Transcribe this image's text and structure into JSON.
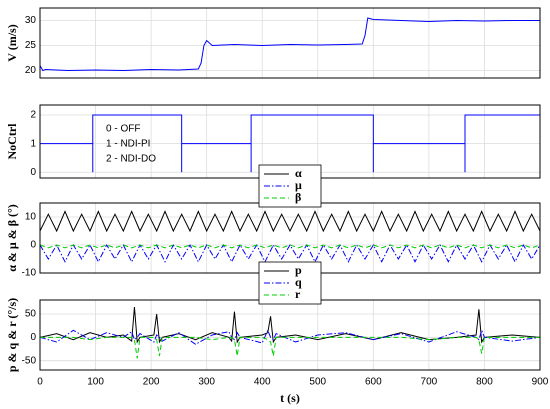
{
  "chart_data": [
    {
      "type": "line",
      "ylabel": "V (m/s)",
      "xlim": [
        0,
        900
      ],
      "xticks": [
        0,
        100,
        200,
        300,
        400,
        500,
        600,
        700,
        800,
        900
      ],
      "show_xtick_labels": false,
      "ylim": [
        18.5,
        32.5
      ],
      "yticks": [
        20,
        25,
        30
      ],
      "grid": true,
      "x": [
        0,
        5,
        10,
        50,
        100,
        150,
        200,
        250,
        285,
        290,
        295,
        300,
        310,
        350,
        400,
        450,
        500,
        550,
        580,
        585,
        590,
        600,
        650,
        700,
        750,
        800,
        850,
        900
      ],
      "series": [
        {
          "color": "#0000ff",
          "dash": "solid",
          "values": [
            21,
            20,
            20.2,
            20,
            20.1,
            20,
            20.2,
            20.1,
            20.3,
            21.5,
            25,
            26,
            25,
            25.2,
            25,
            25.2,
            25.1,
            25.2,
            25.3,
            27,
            30.5,
            30.2,
            30,
            29.8,
            30,
            29.9,
            30,
            30
          ]
        }
      ]
    },
    {
      "type": "line",
      "ylabel": "NoCtrl",
      "xlim": [
        0,
        900
      ],
      "xticks": [
        0,
        100,
        200,
        300,
        400,
        500,
        600,
        700,
        800,
        900
      ],
      "show_xtick_labels": false,
      "ylim": [
        -0.2,
        2.35
      ],
      "yticks": [
        0,
        1,
        2
      ],
      "grid": true,
      "annotations": [
        "0 - OFF",
        "1 - NDI-PI",
        "2 - NDI-DO"
      ],
      "x": [
        0,
        95,
        95,
        95,
        255,
        255,
        255,
        380,
        380,
        380,
        600,
        600,
        600,
        765,
        765,
        765,
        900
      ],
      "series": [
        {
          "color": "#0000ff",
          "dash": "solid",
          "values": [
            1,
            1,
            0,
            2,
            2,
            0,
            1,
            1,
            0,
            2,
            2,
            0,
            1,
            1,
            0,
            2,
            2
          ]
        }
      ]
    },
    {
      "type": "line",
      "ylabel": "α & μ & β (°)",
      "xlim": [
        0,
        900
      ],
      "xticks": [
        0,
        100,
        200,
        300,
        400,
        500,
        600,
        700,
        800,
        900
      ],
      "show_xtick_labels": false,
      "ylim": [
        -10,
        15
      ],
      "yticks": [
        -10,
        0,
        10
      ],
      "grid": true,
      "legend": "top",
      "x": [
        0,
        15,
        30,
        45,
        60,
        75,
        90,
        105,
        120,
        135,
        150,
        165,
        180,
        195,
        210,
        225,
        240,
        255,
        270,
        285,
        300,
        315,
        330,
        345,
        360,
        375,
        390,
        405,
        420,
        435,
        450,
        465,
        480,
        495,
        510,
        525,
        540,
        555,
        570,
        585,
        600,
        615,
        630,
        645,
        660,
        675,
        690,
        705,
        720,
        735,
        750,
        765,
        780,
        795,
        810,
        825,
        840,
        855,
        870,
        885,
        900
      ],
      "series": [
        {
          "name": "α",
          "color": "#000000",
          "dash": "solid",
          "values": [
            5,
            11,
            5,
            12,
            5,
            11,
            5,
            12,
            5,
            11,
            5,
            12,
            5,
            11,
            5,
            12,
            5,
            11,
            5,
            12,
            5,
            11,
            5,
            12,
            5,
            11,
            5,
            12,
            5,
            11,
            5,
            11,
            5,
            12,
            5,
            11,
            5,
            12,
            5,
            11,
            5,
            12,
            5,
            11,
            5,
            12,
            5,
            11,
            5,
            12,
            5,
            11,
            5,
            12,
            5,
            11,
            5,
            12,
            5,
            11,
            5
          ]
        },
        {
          "name": "μ",
          "color": "#0000ff",
          "dash": "dashdot",
          "values": [
            0,
            -5,
            0,
            -6,
            0,
            -5,
            0,
            -6,
            0,
            -5,
            0,
            -6,
            0,
            -5,
            0,
            -6,
            0,
            -5,
            0,
            -6,
            0,
            -5,
            0,
            -6,
            0,
            -5,
            0,
            -6,
            0,
            -5,
            0,
            -5,
            0,
            -6,
            0,
            -5,
            0,
            -6,
            0,
            -5,
            0,
            -6,
            0,
            -5,
            0,
            -6,
            0,
            -5,
            0,
            -6,
            0,
            -5,
            0,
            -6,
            0,
            -5,
            0,
            -6,
            0,
            -5,
            0
          ]
        },
        {
          "name": "β",
          "color": "#00cc00",
          "dash": "dashed",
          "values": [
            0,
            -1,
            0,
            -1,
            0,
            -1,
            0,
            -1,
            0,
            -1,
            0,
            -1,
            0,
            -1,
            0,
            -1,
            0,
            -1,
            0,
            -1,
            0,
            -1,
            0,
            -1,
            0,
            -1,
            0,
            -1,
            0,
            -1,
            0,
            -1,
            0,
            -1,
            0,
            -1,
            0,
            -1,
            0,
            -1,
            0,
            -1,
            0,
            -1,
            0,
            -1,
            0,
            -1,
            0,
            -1,
            0,
            -1,
            0,
            -1,
            0,
            -1,
            0,
            -1,
            0,
            -1,
            0
          ]
        }
      ]
    },
    {
      "type": "line",
      "ylabel": "p & q & r (°/s)",
      "xlabel": "t (s)",
      "xlim": [
        0,
        900
      ],
      "xticks": [
        0,
        100,
        200,
        300,
        400,
        500,
        600,
        700,
        800,
        900
      ],
      "show_xtick_labels": true,
      "ylim": [
        -70,
        80
      ],
      "yticks": [
        -50,
        0,
        50
      ],
      "grid": true,
      "legend": "top",
      "x": [
        0,
        30,
        60,
        90,
        120,
        150,
        165,
        170,
        175,
        180,
        205,
        210,
        215,
        220,
        250,
        280,
        310,
        340,
        345,
        350,
        355,
        360,
        400,
        410,
        415,
        420,
        425,
        460,
        500,
        550,
        600,
        650,
        700,
        750,
        785,
        790,
        795,
        800,
        850,
        900
      ],
      "series": [
        {
          "name": "p",
          "color": "#000000",
          "dash": "solid",
          "values": [
            0,
            8,
            -5,
            10,
            0,
            5,
            -8,
            65,
            -10,
            0,
            5,
            50,
            -10,
            0,
            8,
            -5,
            10,
            0,
            -8,
            55,
            -10,
            0,
            5,
            10,
            45,
            -10,
            0,
            5,
            -5,
            8,
            -5,
            10,
            -5,
            0,
            5,
            60,
            -10,
            0,
            5,
            0
          ]
        },
        {
          "name": "q",
          "color": "#0000ff",
          "dash": "dashdot",
          "values": [
            0,
            -10,
            15,
            -5,
            10,
            0,
            12,
            -5,
            0,
            8,
            -10,
            5,
            0,
            -8,
            10,
            -15,
            5,
            12,
            0,
            -5,
            10,
            0,
            -12,
            15,
            0,
            -5,
            8,
            -10,
            5,
            10,
            -5,
            8,
            -10,
            12,
            0,
            -5,
            15,
            0,
            -8,
            0
          ]
        },
        {
          "name": "r",
          "color": "#00cc00",
          "dash": "dashed",
          "values": [
            0,
            0,
            0,
            -5,
            0,
            0,
            0,
            -5,
            -45,
            0,
            0,
            -5,
            -40,
            0,
            0,
            0,
            -5,
            0,
            0,
            -5,
            -40,
            0,
            0,
            -5,
            -10,
            -40,
            0,
            0,
            0,
            0,
            0,
            0,
            -5,
            0,
            0,
            -5,
            -35,
            0,
            0,
            0
          ]
        }
      ]
    }
  ]
}
